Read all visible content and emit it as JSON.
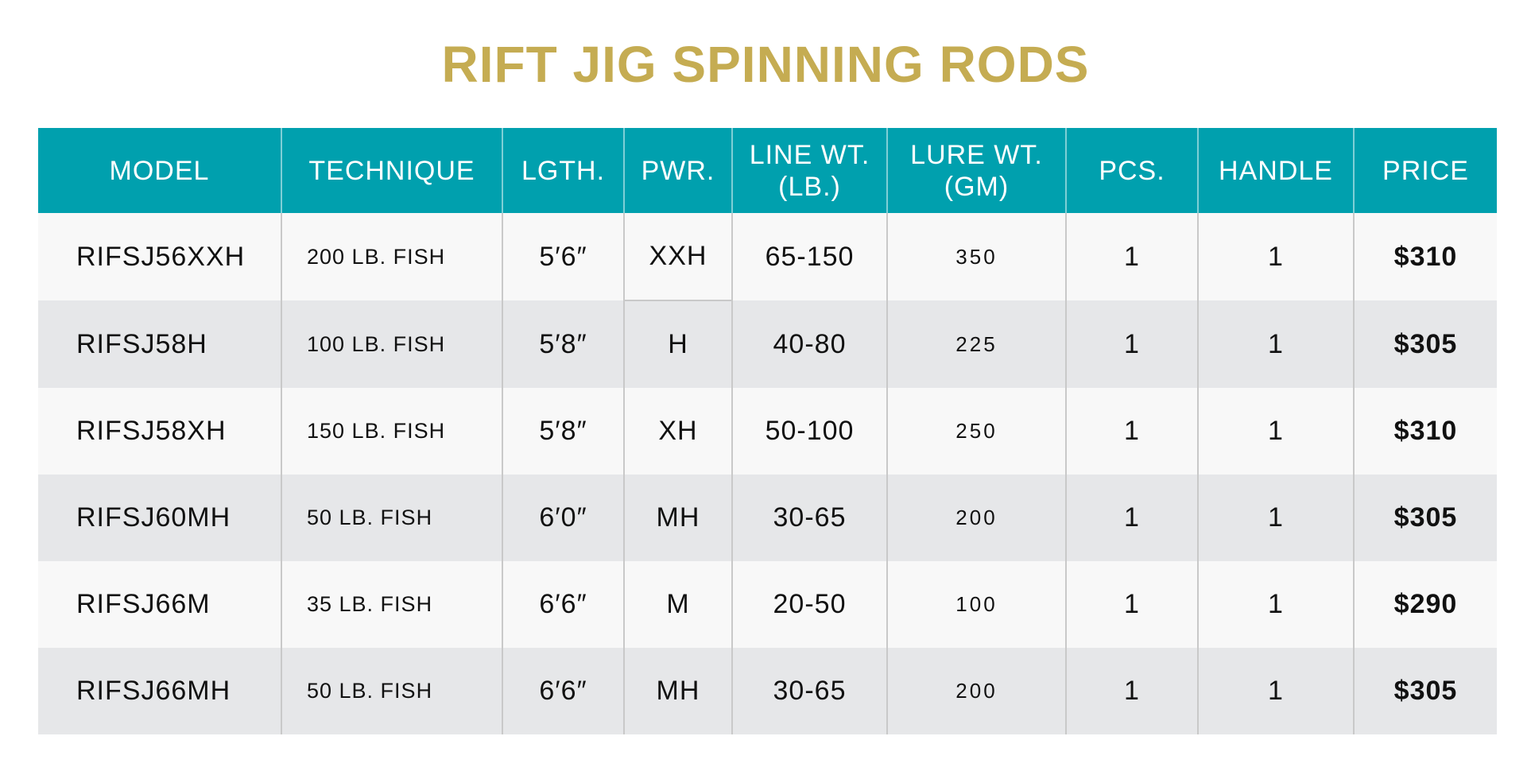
{
  "title": "RIFT JIG SPINNING RODS",
  "colors": {
    "title": "#C5AC52",
    "header": "#00A0AE",
    "row_light": "#F8F8F8",
    "row_dark": "#E6E7E9"
  },
  "columns": [
    "MODEL",
    "TECHNIQUE",
    "LGTH.",
    "PWR.",
    [
      "LINE WT.",
      "(LB.)"
    ],
    [
      "LURE WT.",
      "(GM)"
    ],
    "PCS.",
    "HANDLE",
    "PRICE"
  ],
  "rows": [
    [
      "RIFSJ56XXH",
      "200 LB. FISH",
      "5′6″",
      "XXH",
      "65-150",
      "350",
      "1",
      "1",
      "$310"
    ],
    [
      "RIFSJ58H",
      "100 LB. FISH",
      "5′8″",
      "H",
      "40-80",
      "225",
      "1",
      "1",
      "$305"
    ],
    [
      "RIFSJ58XH",
      "150 LB. FISH",
      "5′8″",
      "XH",
      "50-100",
      "250",
      "1",
      "1",
      "$310"
    ],
    [
      "RIFSJ60MH",
      "50 LB. FISH",
      "6′0″",
      "MH",
      "30-65",
      "200",
      "1",
      "1",
      "$305"
    ],
    [
      "RIFSJ66M",
      "35 LB. FISH",
      "6′6″",
      "M",
      "20-50",
      "100",
      "1",
      "1",
      "$290"
    ],
    [
      "RIFSJ66MH",
      "50 LB. FISH",
      "6′6″",
      "MH",
      "30-65",
      "200",
      "1",
      "1",
      "$305"
    ]
  ]
}
